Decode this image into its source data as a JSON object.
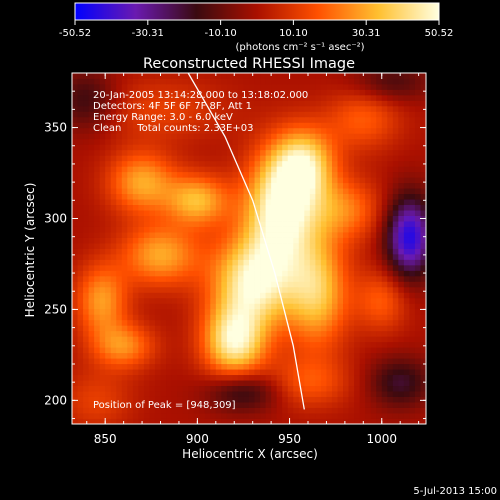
{
  "colorbar": {
    "ticks": [
      "-50.52",
      "-30.31",
      "-10.10",
      "10.10",
      "30.31",
      "50.52"
    ],
    "units": "(photons cm⁻² s⁻¹ asec⁻²)",
    "range": [
      -50.52,
      50.52
    ],
    "colormap": [
      "#0000ff",
      "#6a1ab0",
      "#3a0a10",
      "#aa1000",
      "#ff5000",
      "#ffc030",
      "#ffffe0"
    ]
  },
  "annotations": {
    "line1": "20-Jan-2005 13:14:28.000 to 13:18:02.000",
    "line2": "Detectors: 4F 5F 6F 7F 8F, Att 1",
    "line3": "Energy Range: 3.0 - 6.0 keV",
    "line4": "Clean     Total counts: 2.33E+03",
    "peak": "Position of Peak = [948,309]"
  },
  "footer": {
    "timestamp": "5-Jul-2013 15:00"
  },
  "chart_data": {
    "type": "heatmap",
    "title": "Reconstructed RHESSI Image",
    "xlabel": "Heliocentric X (arcsec)",
    "ylabel": "Heliocentric Y (arcsec)",
    "xlim": [
      832,
      1024
    ],
    "ylim": [
      187,
      380
    ],
    "xticks": [
      850,
      900,
      950,
      1000
    ],
    "yticks": [
      200,
      250,
      300,
      350
    ],
    "limb_curve": [
      [
        895,
        380
      ],
      [
        915,
        345
      ],
      [
        930,
        310
      ],
      [
        942,
        270
      ],
      [
        952,
        230
      ],
      [
        958,
        195
      ]
    ],
    "peak": [
      948,
      309
    ],
    "blobs": [
      {
        "x": 945,
        "y": 305,
        "sx": 14,
        "sy": 22,
        "v": 50
      },
      {
        "x": 930,
        "y": 265,
        "sx": 16,
        "sy": 18,
        "v": 46
      },
      {
        "x": 920,
        "y": 232,
        "sx": 12,
        "sy": 14,
        "v": 44
      },
      {
        "x": 958,
        "y": 330,
        "sx": 12,
        "sy": 14,
        "v": 38
      },
      {
        "x": 965,
        "y": 260,
        "sx": 12,
        "sy": 22,
        "v": 35
      },
      {
        "x": 900,
        "y": 310,
        "sx": 12,
        "sy": 10,
        "v": 32
      },
      {
        "x": 870,
        "y": 320,
        "sx": 13,
        "sy": 12,
        "v": 30
      },
      {
        "x": 880,
        "y": 280,
        "sx": 15,
        "sy": 12,
        "v": 30
      },
      {
        "x": 848,
        "y": 255,
        "sx": 10,
        "sy": 14,
        "v": 28
      },
      {
        "x": 860,
        "y": 230,
        "sx": 12,
        "sy": 9,
        "v": 25
      },
      {
        "x": 980,
        "y": 305,
        "sx": 14,
        "sy": 12,
        "v": 22
      },
      {
        "x": 990,
        "y": 355,
        "sx": 14,
        "sy": 12,
        "v": 18
      },
      {
        "x": 1000,
        "y": 255,
        "sx": 10,
        "sy": 12,
        "v": 18
      },
      {
        "x": 960,
        "y": 210,
        "sx": 16,
        "sy": 10,
        "v": 16
      },
      {
        "x": 880,
        "y": 360,
        "sx": 25,
        "sy": 12,
        "v": 12
      },
      {
        "x": 845,
        "y": 200,
        "sx": 14,
        "sy": 12,
        "v": 12
      },
      {
        "x": 1015,
        "y": 290,
        "sx": 9,
        "sy": 16,
        "v": -45
      },
      {
        "x": 925,
        "y": 205,
        "sx": 14,
        "sy": 8,
        "v": -22
      },
      {
        "x": 1010,
        "y": 210,
        "sx": 12,
        "sy": 10,
        "v": -20
      },
      {
        "x": 840,
        "y": 365,
        "sx": 12,
        "sy": 12,
        "v": -18
      },
      {
        "x": 1005,
        "y": 375,
        "sx": 15,
        "sy": 8,
        "v": -15
      }
    ]
  }
}
